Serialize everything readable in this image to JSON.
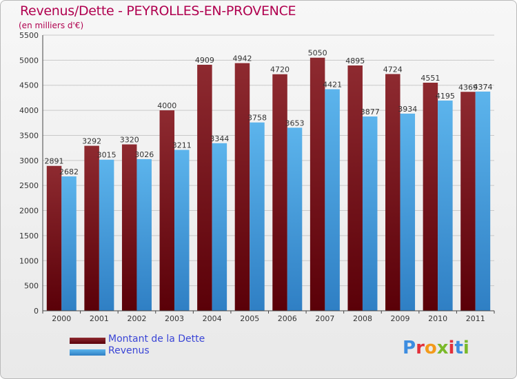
{
  "header": {
    "title": "Revenus/Dette - PEYROLLES-EN-PROVENCE",
    "subtitle": "(en milliers d'€)"
  },
  "colors": {
    "dette": "#7a1e24",
    "revenus": "#4fa8e4",
    "title": "#b0004f",
    "legend_text": "#3a45d6"
  },
  "logo": {
    "text": "Proxiti",
    "letter_colors": [
      "#3d8de0",
      "#e2303a",
      "#f39a1b",
      "#7ab92a",
      "#e2303a",
      "#3d8de0",
      "#7ab92a"
    ]
  },
  "chart_data": {
    "type": "bar",
    "categories": [
      "2000",
      "2001",
      "2002",
      "2003",
      "2004",
      "2005",
      "2006",
      "2007",
      "2008",
      "2009",
      "2010",
      "2011"
    ],
    "series": [
      {
        "name": "Montant de la Dette",
        "values": [
          2891,
          3292,
          3320,
          4000,
          4909,
          4942,
          4720,
          5050,
          4895,
          4724,
          4551,
          4369
        ]
      },
      {
        "name": "Revenus",
        "values": [
          2682,
          3015,
          3026,
          3211,
          3344,
          3758,
          3653,
          4421,
          3877,
          3934,
          4195,
          4374
        ]
      }
    ],
    "ylim": [
      0,
      5500
    ],
    "yticks": [
      "0",
      "500",
      "1000",
      "1500",
      "2000",
      "2500",
      "3000",
      "3500",
      "4000",
      "4500",
      "5000",
      "5500"
    ],
    "grid": true,
    "legend_position": "bottom-left"
  }
}
